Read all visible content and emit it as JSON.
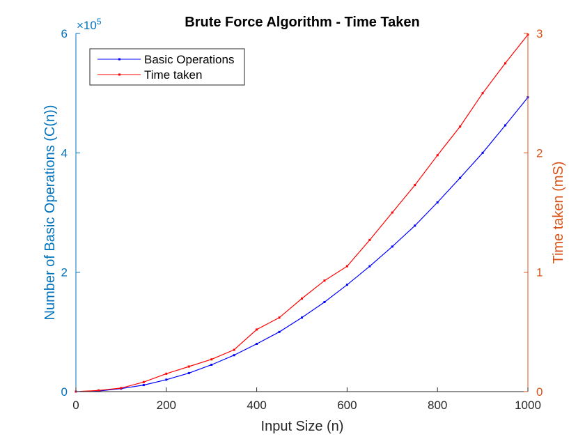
{
  "colors": {
    "background": "#ffffff",
    "left_axis": "#0072BD",
    "right_axis": "#D95319",
    "bottom_axis": "#262626",
    "title": "#000000"
  },
  "chart_data": {
    "type": "line",
    "title": "Brute Force Algorithm - Time Taken",
    "xlabel": "Input Size (n)",
    "ylabel_left": "Number of Basic Operations (C(n))",
    "ylabel_right": "Time taken (mS)",
    "left_exponent_base": "×10",
    "left_exponent_power": "5",
    "xlim": [
      0,
      1000
    ],
    "ylim_left": [
      0,
      6
    ],
    "ylim_right": [
      0,
      3
    ],
    "x_ticks": [
      "0",
      "200",
      "400",
      "600",
      "800",
      "1000"
    ],
    "y_left_ticks": [
      "0",
      "2",
      "4",
      "6"
    ],
    "y_right_ticks": [
      "0",
      "1",
      "2",
      "3"
    ],
    "grid": false,
    "legend_position": "top-left",
    "series": [
      {
        "name": "Basic Operations",
        "axis": "left",
        "color": "#0000FF",
        "x": [
          0,
          50,
          100,
          150,
          200,
          250,
          300,
          350,
          400,
          450,
          500,
          550,
          600,
          650,
          700,
          750,
          800,
          850,
          900,
          950,
          1000
        ],
        "y": [
          0,
          0.01,
          0.05,
          0.11,
          0.2,
          0.31,
          0.45,
          0.61,
          0.8,
          1.0,
          1.24,
          1.5,
          1.79,
          2.1,
          2.43,
          2.78,
          3.17,
          3.58,
          4.0,
          4.46,
          4.93
        ]
      },
      {
        "name": "Time taken",
        "axis": "right",
        "color": "#FF0000",
        "x": [
          0,
          50,
          100,
          150,
          200,
          250,
          300,
          350,
          400,
          450,
          500,
          550,
          600,
          650,
          700,
          750,
          800,
          850,
          900,
          950,
          1000
        ],
        "y": [
          0,
          0.01,
          0.03,
          0.08,
          0.15,
          0.21,
          0.27,
          0.35,
          0.52,
          0.62,
          0.78,
          0.93,
          1.05,
          1.27,
          1.5,
          1.73,
          1.98,
          2.22,
          2.5,
          2.75,
          2.99
        ]
      }
    ]
  }
}
